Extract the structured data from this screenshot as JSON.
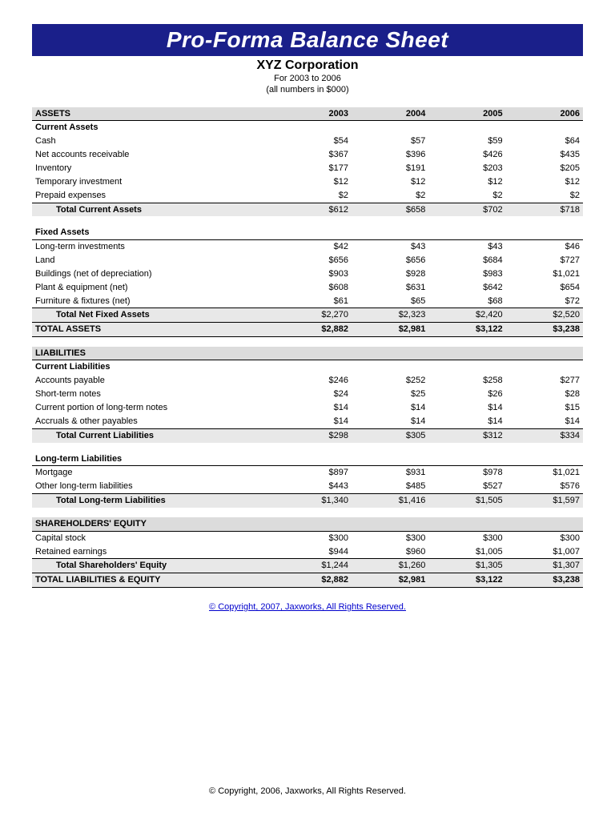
{
  "title": "Pro-Forma Balance Sheet",
  "company": "XYZ Corporation",
  "period": "For 2003 to 2006",
  "units": "(all numbers in $000)",
  "years": [
    "2003",
    "2004",
    "2005",
    "2006"
  ],
  "assets": {
    "heading": "ASSETS",
    "current": {
      "heading": "Current Assets",
      "rows": [
        {
          "label": "Cash",
          "vals": [
            "$54",
            "$57",
            "$59",
            "$64"
          ]
        },
        {
          "label": "Net accounts receivable",
          "vals": [
            "$367",
            "$396",
            "$426",
            "$435"
          ]
        },
        {
          "label": "Inventory",
          "vals": [
            "$177",
            "$191",
            "$203",
            "$205"
          ]
        },
        {
          "label": "Temporary investment",
          "vals": [
            "$12",
            "$12",
            "$12",
            "$12"
          ]
        },
        {
          "label": "Prepaid expenses",
          "vals": [
            "$2",
            "$2",
            "$2",
            "$2"
          ]
        }
      ],
      "total": {
        "label": "Total Current Assets",
        "vals": [
          "$612",
          "$658",
          "$702",
          "$718"
        ]
      }
    },
    "fixed": {
      "heading": "Fixed Assets",
      "rows": [
        {
          "label": "Long-term investments",
          "vals": [
            "$42",
            "$43",
            "$43",
            "$46"
          ]
        },
        {
          "label": "Land",
          "vals": [
            "$656",
            "$656",
            "$684",
            "$727"
          ]
        },
        {
          "label": "Buildings (net of depreciation)",
          "vals": [
            "$903",
            "$928",
            "$983",
            "$1,021"
          ]
        },
        {
          "label": "Plant & equipment (net)",
          "vals": [
            "$608",
            "$631",
            "$642",
            "$654"
          ]
        },
        {
          "label": "Furniture & fixtures (net)",
          "vals": [
            "$61",
            "$65",
            "$68",
            "$72"
          ]
        }
      ],
      "total": {
        "label": "Total Net Fixed Assets",
        "vals": [
          "$2,270",
          "$2,323",
          "$2,420",
          "$2,520"
        ]
      }
    },
    "grand": {
      "label": "TOTAL ASSETS",
      "vals": [
        "$2,882",
        "$2,981",
        "$3,122",
        "$3,238"
      ]
    }
  },
  "liabilities": {
    "heading": "LIABILITIES",
    "current": {
      "heading": "Current Liabilities",
      "rows": [
        {
          "label": "Accounts payable",
          "vals": [
            "$246",
            "$252",
            "$258",
            "$277"
          ]
        },
        {
          "label": "Short-term notes",
          "vals": [
            "$24",
            "$25",
            "$26",
            "$28"
          ]
        },
        {
          "label": "Current portion of long-term notes",
          "vals": [
            "$14",
            "$14",
            "$14",
            "$15"
          ]
        },
        {
          "label": "Accruals & other payables",
          "vals": [
            "$14",
            "$14",
            "$14",
            "$14"
          ]
        }
      ],
      "total": {
        "label": "Total Current Liabilities",
        "vals": [
          "$298",
          "$305",
          "$312",
          "$334"
        ]
      }
    },
    "longterm": {
      "heading": "Long-term Liabilities",
      "rows": [
        {
          "label": "Mortgage",
          "vals": [
            "$897",
            "$931",
            "$978",
            "$1,021"
          ]
        },
        {
          "label": "Other long-term liabilities",
          "vals": [
            "$443",
            "$485",
            "$527",
            "$576"
          ]
        }
      ],
      "total": {
        "label": "Total Long-term Liabilities",
        "vals": [
          "$1,340",
          "$1,416",
          "$1,505",
          "$1,597"
        ]
      }
    }
  },
  "equity": {
    "heading": "SHAREHOLDERS' EQUITY",
    "rows": [
      {
        "label": "Capital stock",
        "vals": [
          "$300",
          "$300",
          "$300",
          "$300"
        ]
      },
      {
        "label": "Retained earnings",
        "vals": [
          "$944",
          "$960",
          "$1,005",
          "$1,007"
        ]
      }
    ],
    "total": {
      "label": "Total Shareholders' Equity",
      "vals": [
        "$1,244",
        "$1,260",
        "$1,305",
        "$1,307"
      ]
    },
    "grand": {
      "label": "TOTAL LIABILITIES & EQUITY",
      "vals": [
        "$2,882",
        "$2,981",
        "$3,122",
        "$3,238"
      ]
    }
  },
  "copyright_link": "© Copyright, 2007, Jaxworks, All Rights Reserved.",
  "footer": "© Copyright, 2006, Jaxworks, All Rights Reserved.",
  "colors": {
    "title_bg": "#1a1f8a",
    "title_fg": "#ffffff",
    "shade": "#e8e8e8",
    "head_shade": "#dcdcdc",
    "link": "#0000cc"
  }
}
